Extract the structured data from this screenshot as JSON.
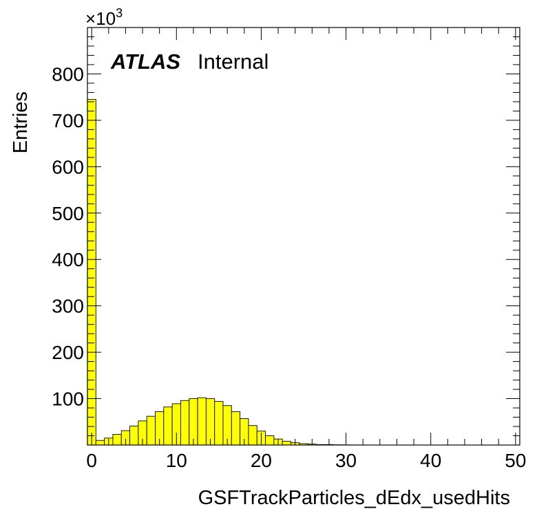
{
  "chart_data": {
    "type": "bar",
    "histogram": true,
    "xlabel": "GSFTrackParticles_dEdx_usedHits",
    "ylabel": "Entries",
    "y_multiplier": "×10",
    "y_multiplier_exp": "3",
    "label_bold": "ATLAS",
    "label_text": "Internal",
    "xlim": [
      -0.5,
      50.5
    ],
    "ylim": [
      0,
      900
    ],
    "x_ticks": [
      0,
      10,
      20,
      30,
      40,
      50
    ],
    "x_tick_labels": [
      "0",
      "10",
      "20",
      "30",
      "40",
      "50"
    ],
    "y_ticks": [
      100,
      200,
      300,
      400,
      500,
      600,
      700,
      800
    ],
    "y_tick_labels": [
      "100",
      "200",
      "300",
      "400",
      "500",
      "600",
      "700",
      "800"
    ],
    "bin_width": 1,
    "bins": [
      0,
      1,
      2,
      3,
      4,
      5,
      6,
      7,
      8,
      9,
      10,
      11,
      12,
      13,
      14,
      15,
      16,
      17,
      18,
      19,
      20,
      21,
      22,
      23,
      24,
      25,
      26,
      27,
      28,
      29,
      30,
      31,
      32,
      33,
      34,
      35,
      36,
      37,
      38,
      39,
      40,
      41,
      42,
      43,
      44,
      45,
      46,
      47,
      48,
      49,
      50
    ],
    "values": [
      745,
      10,
      15,
      23,
      31,
      41,
      52,
      62,
      72,
      82,
      89,
      96,
      100,
      102,
      100,
      94,
      85,
      72,
      57,
      42,
      30,
      20,
      13,
      8,
      5,
      3,
      2,
      1,
      1,
      0.5,
      0.3,
      0.2,
      0.1,
      0,
      0,
      0,
      0,
      0,
      0,
      0,
      0,
      0,
      0,
      0,
      0,
      0,
      0,
      0,
      0,
      0,
      0
    ],
    "grid": false,
    "fill_color": "#ffff00",
    "line_color": "#000000"
  }
}
